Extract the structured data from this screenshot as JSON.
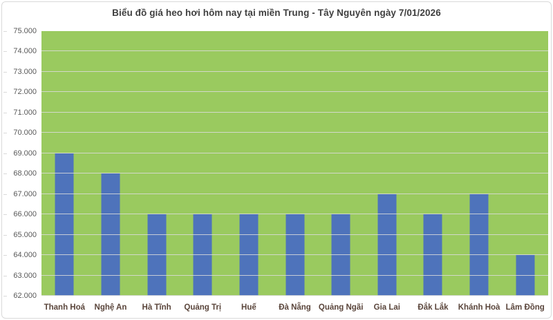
{
  "chart_data": {
    "type": "bar",
    "title": "Biểu đồ giá heo hơi hôm nay tại miền Trung - Tây Nguyên ngày 7/01/2026",
    "categories": [
      "Thanh Hoá",
      "Nghệ An",
      "Hà Tĩnh",
      "Quảng Trị",
      "Huế",
      "Đà Nẵng",
      "Quảng Ngãi",
      "Gia Lai",
      "Đắk Lắk",
      "Khánh Hoà",
      "Lâm Đồng"
    ],
    "values": [
      69000,
      68000,
      66000,
      66000,
      66000,
      66000,
      66000,
      67000,
      66000,
      67000,
      64000
    ],
    "xlabel": "",
    "ylabel": "",
    "ylim": [
      62000,
      75000
    ],
    "y_tick_step": 1000,
    "y_tick_labels": [
      "75.000",
      "74.000",
      "73.000",
      "72.000",
      "71.000",
      "70.000",
      "69.000",
      "68.000",
      "67.000",
      "66.000",
      "65.000",
      "64.000",
      "63.000",
      "62.000"
    ],
    "grid": true,
    "gridlines_over_bars": true,
    "legend_position": "none",
    "colors": {
      "bar": "#4e73bb",
      "plot_background": "#9aca5f",
      "gridline": "#dcdcdc",
      "title_text": "#3f3f3f",
      "y_label_text": "#595959",
      "x_label_text": "#5a453b",
      "frame_border": "#d9d9d9",
      "background": "#ffffff"
    }
  }
}
